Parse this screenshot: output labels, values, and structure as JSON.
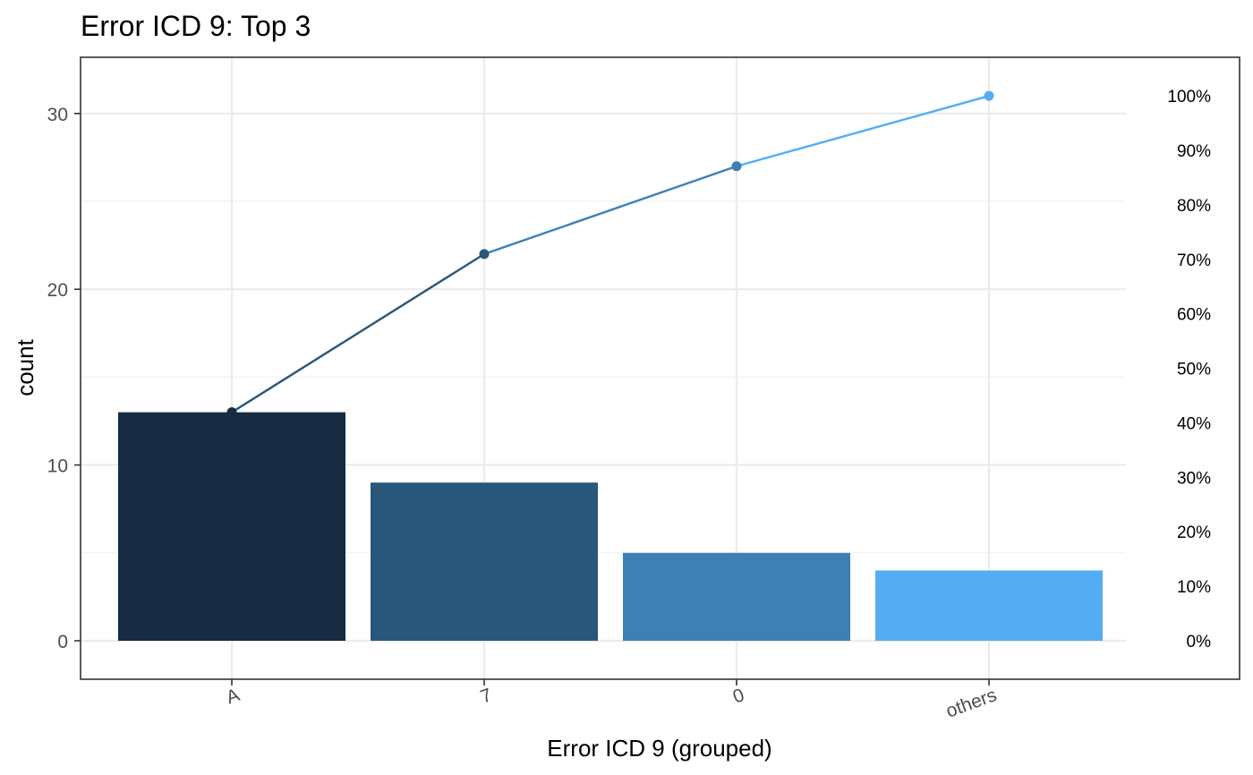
{
  "chart_data": {
    "type": "bar",
    "title": "Error ICD 9: Top 3",
    "xlabel": "Error ICD 9 (grouped)",
    "ylabel": "count",
    "categories": [
      "A",
      "7",
      "0",
      "others"
    ],
    "values": [
      13,
      9,
      5,
      4
    ],
    "cumulative": [
      13,
      22,
      27,
      31
    ],
    "bar_colors": [
      "#172b43",
      "#29567b",
      "#3e80b5",
      "#54adf2"
    ],
    "point_colors": [
      "#172b43",
      "#29567b",
      "#3e80b5",
      "#54adf2"
    ],
    "ylim": [
      -2.2,
      33.2
    ],
    "y_ticks": [
      0,
      10,
      20,
      30
    ],
    "y_tick_labels": [
      "0",
      "10",
      "20",
      "30"
    ],
    "secondary_axis": {
      "label": "",
      "max": 31,
      "ticks": [
        0,
        10,
        20,
        30,
        40,
        50,
        60,
        70,
        80,
        90,
        100
      ],
      "tick_labels": [
        "0%",
        "10%",
        "20%",
        "30%",
        "40%",
        "50%",
        "60%",
        "70%",
        "80%",
        "90%",
        "100%"
      ]
    },
    "grid": true,
    "legend": "none"
  }
}
